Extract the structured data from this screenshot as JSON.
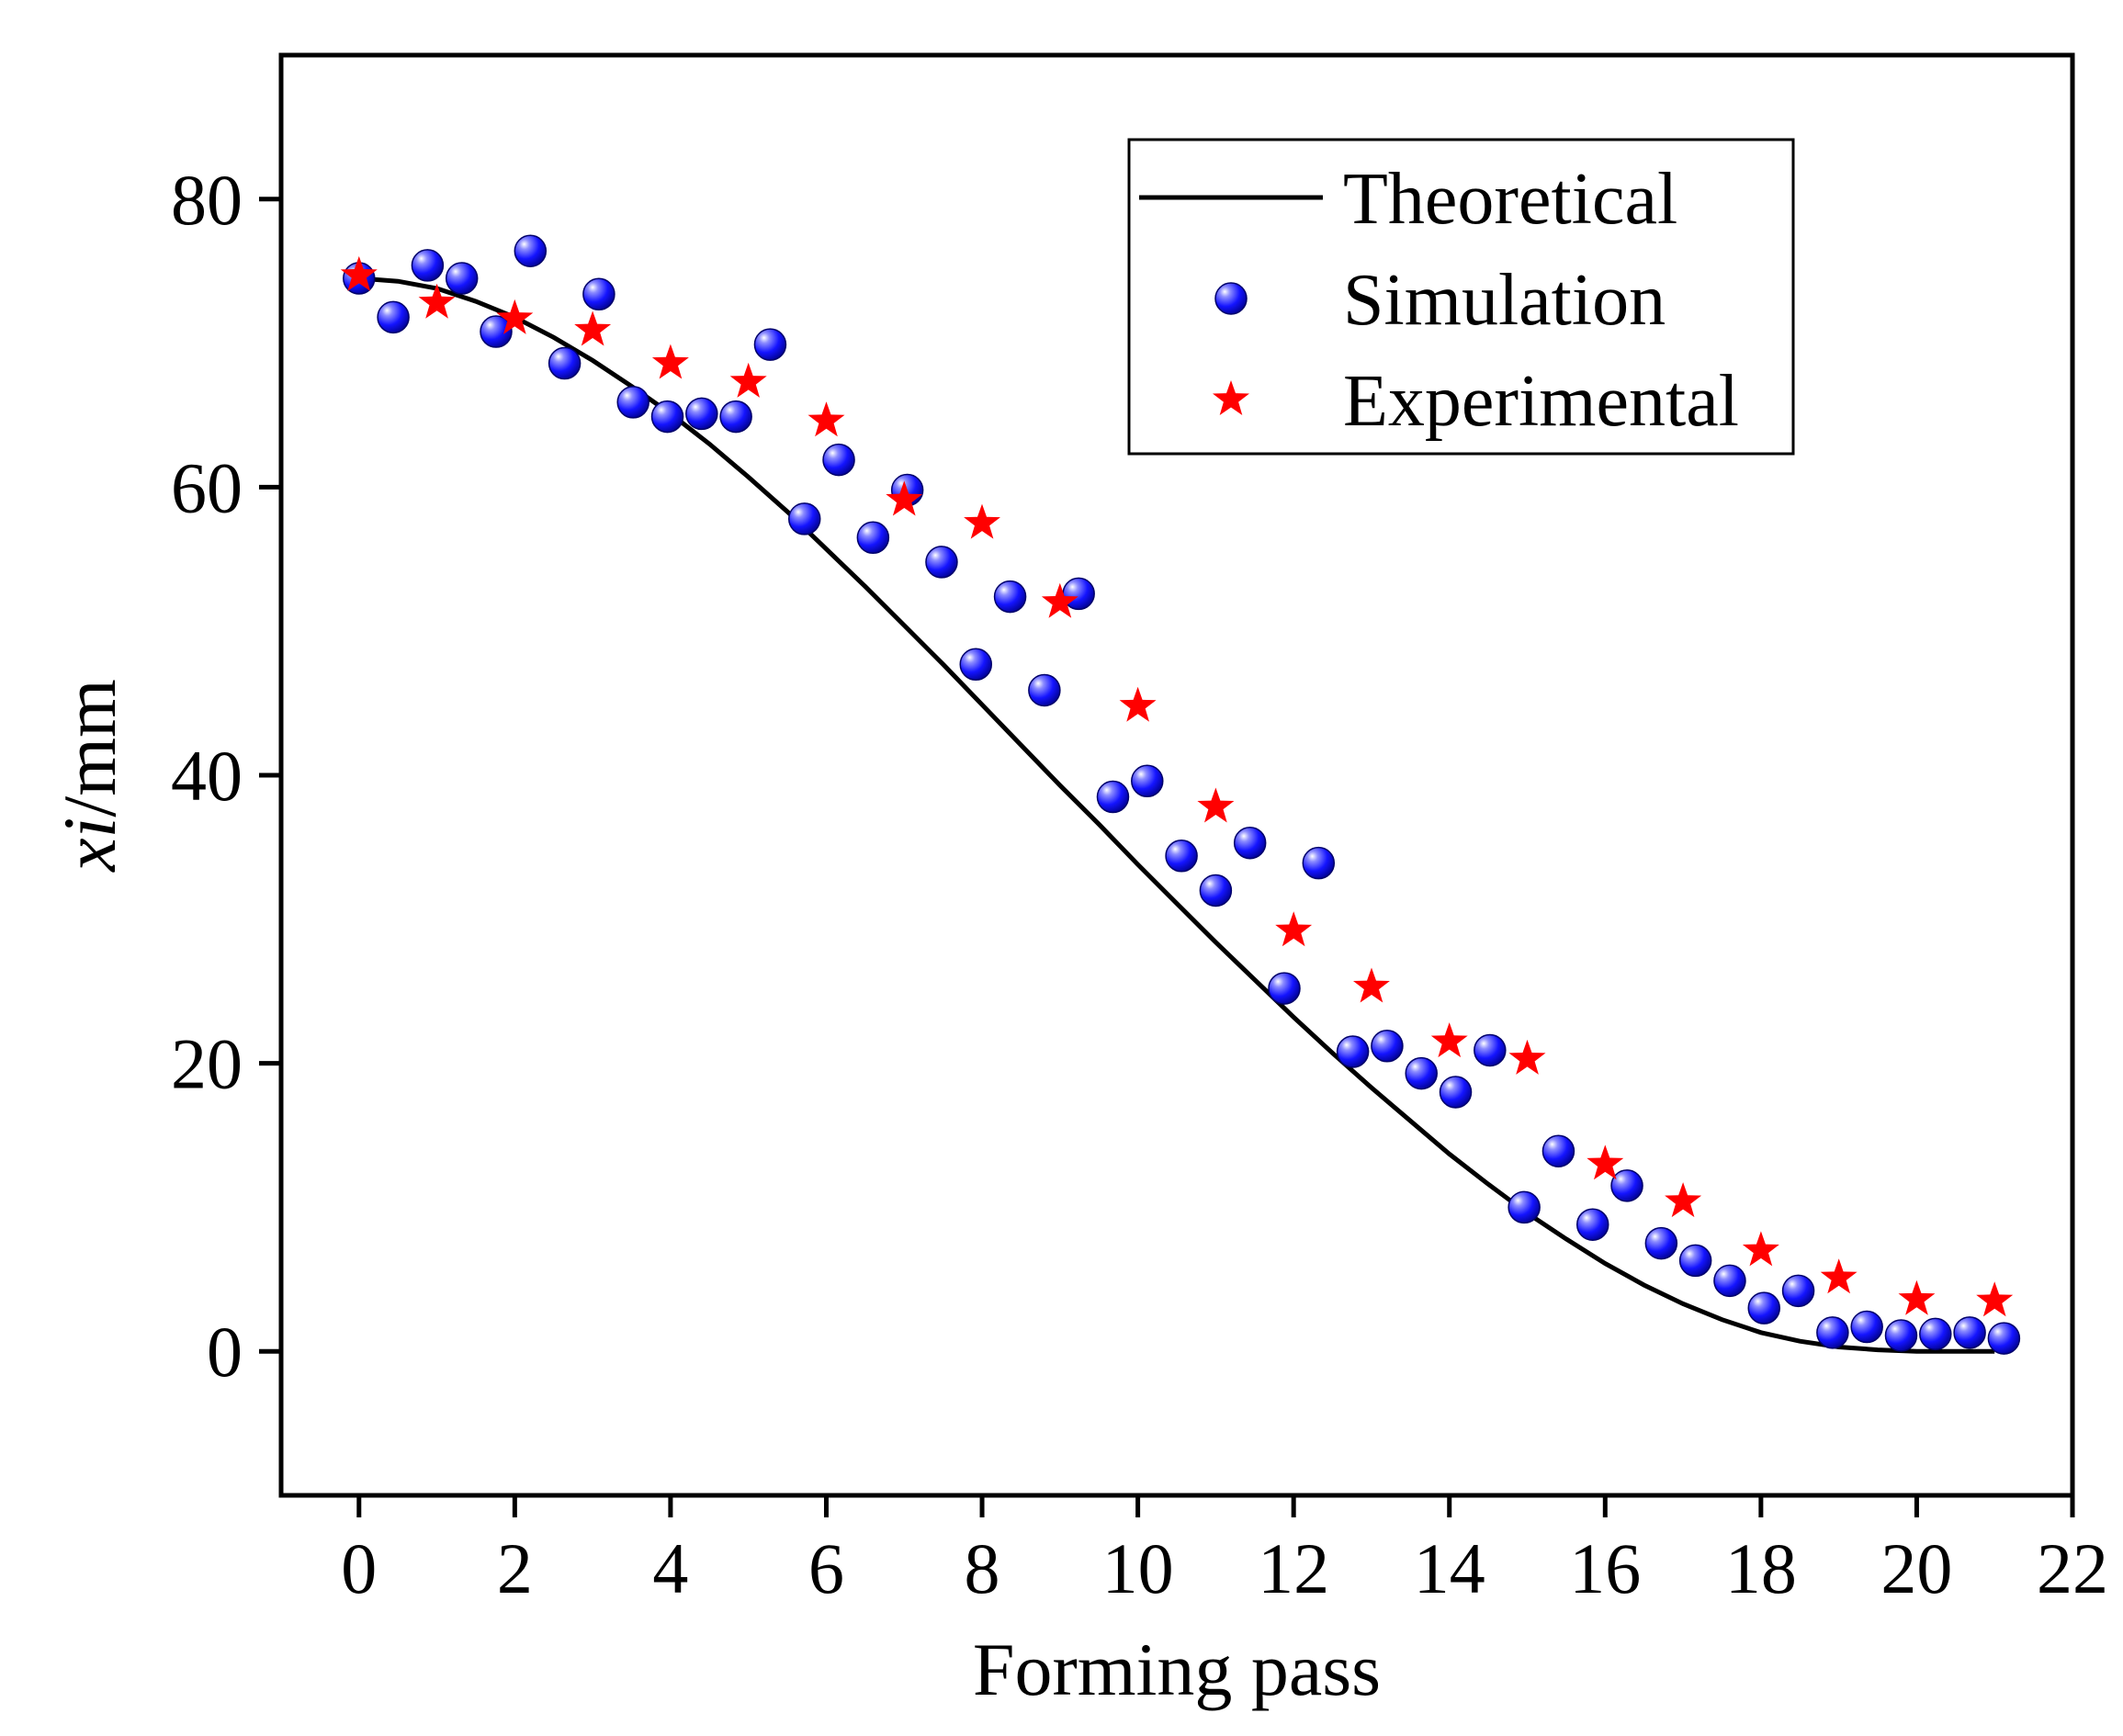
{
  "chart_data": {
    "type": "scatter",
    "xlabel": "Forming pass",
    "ylabel": "xi/mm",
    "ylabel_parts": {
      "italic": "xi",
      "rest": "/mm"
    },
    "xlim": [
      -1,
      22
    ],
    "ylim": [
      -10,
      90
    ],
    "xticks": [
      0,
      2,
      4,
      6,
      8,
      10,
      12,
      14,
      16,
      18,
      20,
      22
    ],
    "yticks": [
      0,
      20,
      40,
      60,
      80
    ],
    "grid": false,
    "legend": "top-right",
    "series": [
      {
        "name": "Theoretical",
        "kind": "line",
        "color": "#000000",
        "x": [
          0,
          0.5,
          1,
          1.5,
          2,
          2.5,
          3,
          3.5,
          4,
          4.5,
          5,
          5.5,
          6,
          6.5,
          7,
          7.5,
          8,
          8.5,
          9,
          9.5,
          10,
          10.5,
          11,
          11.5,
          12,
          12.5,
          13,
          13.5,
          14,
          14.5,
          15,
          15.5,
          16,
          16.5,
          17,
          17.5,
          18,
          18.5,
          19,
          19.5,
          20,
          20.5,
          21
        ],
        "y": [
          74.5,
          74.3,
          73.8,
          72.9,
          71.8,
          70.4,
          68.8,
          67.0,
          65.1,
          63.0,
          60.7,
          58.3,
          55.7,
          53.1,
          50.4,
          47.7,
          44.9,
          42.1,
          39.3,
          36.6,
          33.8,
          31.1,
          28.4,
          25.8,
          23.2,
          20.7,
          18.3,
          16.0,
          13.7,
          11.6,
          9.6,
          7.8,
          6.1,
          4.6,
          3.3,
          2.2,
          1.3,
          0.7,
          0.3,
          0.1,
          0.0,
          0.0,
          0.0
        ]
      },
      {
        "name": "Simulation",
        "kind": "scatter",
        "marker": "sphere",
        "color": "#1414ff",
        "x": [
          0,
          0.44,
          0.88,
          1.32,
          1.76,
          2.2,
          2.64,
          3.08,
          3.52,
          3.96,
          4.4,
          4.84,
          5.28,
          5.72,
          6.16,
          6.6,
          7.04,
          7.48,
          7.92,
          8.36,
          8.8,
          9.24,
          9.68,
          10.12,
          10.56,
          11.0,
          11.44,
          11.88,
          12.32,
          12.76,
          13.2,
          13.64,
          14.08,
          14.52,
          14.96,
          15.4,
          15.84,
          16.28,
          16.72,
          17.16,
          17.6,
          18.04,
          18.48,
          18.92,
          19.36,
          19.8,
          20.24,
          20.68,
          21.12
        ],
        "y": [
          74.5,
          71.8,
          75.4,
          74.5,
          70.8,
          76.4,
          68.6,
          73.4,
          65.9,
          64.9,
          65.1,
          64.9,
          69.9,
          57.8,
          61.9,
          56.5,
          59.8,
          54.8,
          47.7,
          52.4,
          45.9,
          52.6,
          38.5,
          39.6,
          34.4,
          32.0,
          35.3,
          25.2,
          33.9,
          20.8,
          21.2,
          19.3,
          18.0,
          20.9,
          10.0,
          13.9,
          8.8,
          11.5,
          7.5,
          6.3,
          4.9,
          3.0,
          4.2,
          1.3,
          1.7,
          1.1,
          1.2,
          1.3,
          0.9
        ]
      },
      {
        "name": "Experimental",
        "kind": "scatter",
        "marker": "star",
        "color": "#ff0000",
        "x": [
          0,
          1,
          2,
          3,
          4,
          5,
          6,
          7,
          8,
          9,
          10,
          11,
          12,
          13,
          14,
          15,
          16,
          17,
          18,
          19,
          20,
          21
        ],
        "y": [
          74.7,
          72.8,
          71.7,
          70.9,
          68.6,
          67.3,
          64.6,
          59.1,
          57.5,
          52.0,
          44.8,
          37.8,
          29.2,
          25.3,
          21.5,
          20.3,
          13.0,
          10.4,
          7.0,
          5.1,
          3.6,
          3.5
        ]
      }
    ]
  }
}
